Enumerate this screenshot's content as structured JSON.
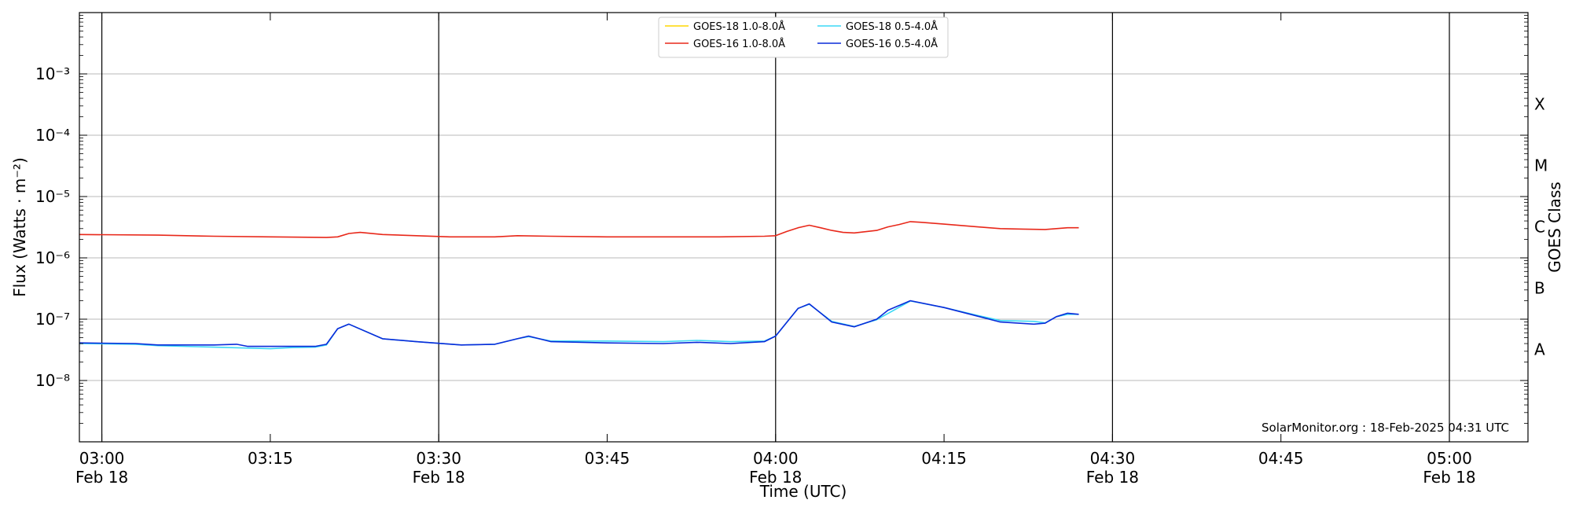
{
  "chart_data": {
    "type": "line",
    "xlabel": "Time (UTC)",
    "ylabel": "Flux (Watts · m⁻²)",
    "y2label": "GOES Class",
    "yscale": "log",
    "ylim": [
      1e-09,
      0.01
    ],
    "xlim": [
      "02:58",
      "05:07"
    ],
    "grid": "horizontal at each decade",
    "legend_position": "top-center",
    "credit": "SolarMonitor.org : 18-Feb-2025 04:31 UTC",
    "y_ticks": [
      {
        "value": 1e-08,
        "label": "10⁻⁸"
      },
      {
        "value": 1e-07,
        "label": "10⁻⁷"
      },
      {
        "value": 1e-06,
        "label": "10⁻⁶"
      },
      {
        "value": 1e-05,
        "label": "10⁻⁵"
      },
      {
        "value": 0.0001,
        "label": "10⁻⁴"
      },
      {
        "value": 0.001,
        "label": "10⁻³"
      }
    ],
    "x_ticks": [
      {
        "time": "03:00",
        "label": "03:00",
        "date": "Feb 18"
      },
      {
        "time": "03:15",
        "label": "03:15",
        "date": ""
      },
      {
        "time": "03:30",
        "label": "03:30",
        "date": "Feb 18"
      },
      {
        "time": "03:45",
        "label": "03:45",
        "date": ""
      },
      {
        "time": "04:00",
        "label": "04:00",
        "date": "Feb 18"
      },
      {
        "time": "04:15",
        "label": "04:15",
        "date": ""
      },
      {
        "time": "04:30",
        "label": "04:30",
        "date": "Feb 18"
      },
      {
        "time": "04:45",
        "label": "04:45",
        "date": ""
      },
      {
        "time": "05:00",
        "label": "05:00",
        "date": "Feb 18"
      }
    ],
    "vertical_lines": [
      "03:00",
      "03:30",
      "04:00",
      "04:30",
      "05:00"
    ],
    "goes_classes": [
      {
        "label": "A",
        "flux": 3.2e-08
      },
      {
        "label": "B",
        "flux": 3.2e-07
      },
      {
        "label": "C",
        "flux": 3.2e-06
      },
      {
        "label": "M",
        "flux": 3.2e-05
      },
      {
        "label": "X",
        "flux": 0.00032
      }
    ],
    "series": [
      {
        "name": "GOES-18 1.0-8.0Å",
        "color": "#ffd700",
        "points": []
      },
      {
        "name": "GOES-16 1.0-8.0Å",
        "color": "#e8281a",
        "points": [
          [
            "02:58",
            2.4e-06
          ],
          [
            "03:05",
            2.35e-06
          ],
          [
            "03:10",
            2.25e-06
          ],
          [
            "03:15",
            2.2e-06
          ],
          [
            "03:20",
            2.15e-06
          ],
          [
            "03:21",
            2.2e-06
          ],
          [
            "03:22",
            2.5e-06
          ],
          [
            "03:23",
            2.6e-06
          ],
          [
            "03:25",
            2.4e-06
          ],
          [
            "03:28",
            2.3e-06
          ],
          [
            "03:31",
            2.2e-06
          ],
          [
            "03:35",
            2.2e-06
          ],
          [
            "03:37",
            2.3e-06
          ],
          [
            "03:40",
            2.25e-06
          ],
          [
            "03:45",
            2.2e-06
          ],
          [
            "03:50",
            2.2e-06
          ],
          [
            "03:55",
            2.2e-06
          ],
          [
            "03:59",
            2.25e-06
          ],
          [
            "04:00",
            2.3e-06
          ],
          [
            "04:01",
            2.7e-06
          ],
          [
            "04:02",
            3.1e-06
          ],
          [
            "04:03",
            3.4e-06
          ],
          [
            "04:04",
            3.1e-06
          ],
          [
            "04:05",
            2.8e-06
          ],
          [
            "04:06",
            2.6e-06
          ],
          [
            "04:07",
            2.55e-06
          ],
          [
            "04:09",
            2.8e-06
          ],
          [
            "04:10",
            3.2e-06
          ],
          [
            "04:11",
            3.5e-06
          ],
          [
            "04:12",
            3.9e-06
          ],
          [
            "04:13",
            3.8e-06
          ],
          [
            "04:15",
            3.55e-06
          ],
          [
            "04:18",
            3.2e-06
          ],
          [
            "04:20",
            3e-06
          ],
          [
            "04:22",
            2.95e-06
          ],
          [
            "04:24",
            2.9e-06
          ],
          [
            "04:25",
            3e-06
          ],
          [
            "04:26",
            3.1e-06
          ],
          [
            "04:27",
            3.1e-06
          ]
        ]
      },
      {
        "name": "GOES-18 0.5-4.0Å",
        "color": "#3cd9f5",
        "points": [
          [
            "02:58",
            4e-08
          ],
          [
            "03:03",
            3.9e-08
          ],
          [
            "03:05",
            3.7e-08
          ],
          [
            "03:10",
            3.5e-08
          ],
          [
            "03:15",
            3.3e-08
          ],
          [
            "03:17",
            3.45e-08
          ],
          [
            "03:19",
            3.5e-08
          ],
          [
            "03:20",
            3.8e-08
          ],
          [
            "03:21",
            7e-08
          ],
          [
            "03:22",
            8.3e-08
          ],
          [
            "03:25",
            4.8e-08
          ],
          [
            "03:28",
            4.3e-08
          ],
          [
            "03:32",
            3.8e-08
          ],
          [
            "03:35",
            3.9e-08
          ],
          [
            "03:37",
            4.8e-08
          ],
          [
            "03:38",
            5.2e-08
          ],
          [
            "03:40",
            4.4e-08
          ],
          [
            "03:45",
            4.4e-08
          ],
          [
            "03:50",
            4.3e-08
          ],
          [
            "03:53",
            4.5e-08
          ],
          [
            "03:56",
            4.3e-08
          ],
          [
            "03:59",
            4.4e-08
          ],
          [
            "04:00",
            5.3e-08
          ],
          [
            "04:02",
            1.5e-07
          ],
          [
            "04:03",
            1.75e-07
          ],
          [
            "04:05",
            9.2e-08
          ],
          [
            "04:07",
            7.6e-08
          ],
          [
            "04:09",
            9.8e-08
          ],
          [
            "04:12",
            1.98e-07
          ],
          [
            "04:15",
            1.55e-07
          ],
          [
            "04:18",
            1.15e-07
          ],
          [
            "04:20",
            9.5e-08
          ],
          [
            "04:23",
            9.2e-08
          ],
          [
            "04:24",
            8.7e-08
          ],
          [
            "04:25",
            1.1e-07
          ],
          [
            "04:26",
            1.2e-07
          ],
          [
            "04:27",
            1.2e-07
          ]
        ]
      },
      {
        "name": "GOES-16 0.5-4.0Å",
        "color": "#0a2bd9",
        "points": [
          [
            "02:58",
            4.1e-08
          ],
          [
            "03:03",
            4e-08
          ],
          [
            "03:05",
            3.8e-08
          ],
          [
            "03:10",
            3.8e-08
          ],
          [
            "03:12",
            3.9e-08
          ],
          [
            "03:13",
            3.6e-08
          ],
          [
            "03:15",
            3.6e-08
          ],
          [
            "03:19",
            3.6e-08
          ],
          [
            "03:20",
            3.9e-08
          ],
          [
            "03:21",
            7e-08
          ],
          [
            "03:22",
            8.3e-08
          ],
          [
            "03:25",
            4.8e-08
          ],
          [
            "03:28",
            4.3e-08
          ],
          [
            "03:32",
            3.8e-08
          ],
          [
            "03:35",
            3.9e-08
          ],
          [
            "03:37",
            4.8e-08
          ],
          [
            "03:38",
            5.3e-08
          ],
          [
            "03:40",
            4.3e-08
          ],
          [
            "03:45",
            4.1e-08
          ],
          [
            "03:50",
            4e-08
          ],
          [
            "03:53",
            4.2e-08
          ],
          [
            "03:56",
            4e-08
          ],
          [
            "03:59",
            4.3e-08
          ],
          [
            "04:00",
            5.3e-08
          ],
          [
            "04:02",
            1.5e-07
          ],
          [
            "04:03",
            1.78e-07
          ],
          [
            "04:05",
            9e-08
          ],
          [
            "04:07",
            7.5e-08
          ],
          [
            "04:09",
            1e-07
          ],
          [
            "04:10",
            1.4e-07
          ],
          [
            "04:12",
            2e-07
          ],
          [
            "04:15",
            1.55e-07
          ],
          [
            "04:18",
            1.12e-07
          ],
          [
            "04:20",
            9e-08
          ],
          [
            "04:23",
            8.3e-08
          ],
          [
            "04:24",
            8.6e-08
          ],
          [
            "04:25",
            1.1e-07
          ],
          [
            "04:26",
            1.25e-07
          ],
          [
            "04:27",
            1.2e-07
          ]
        ]
      }
    ]
  }
}
